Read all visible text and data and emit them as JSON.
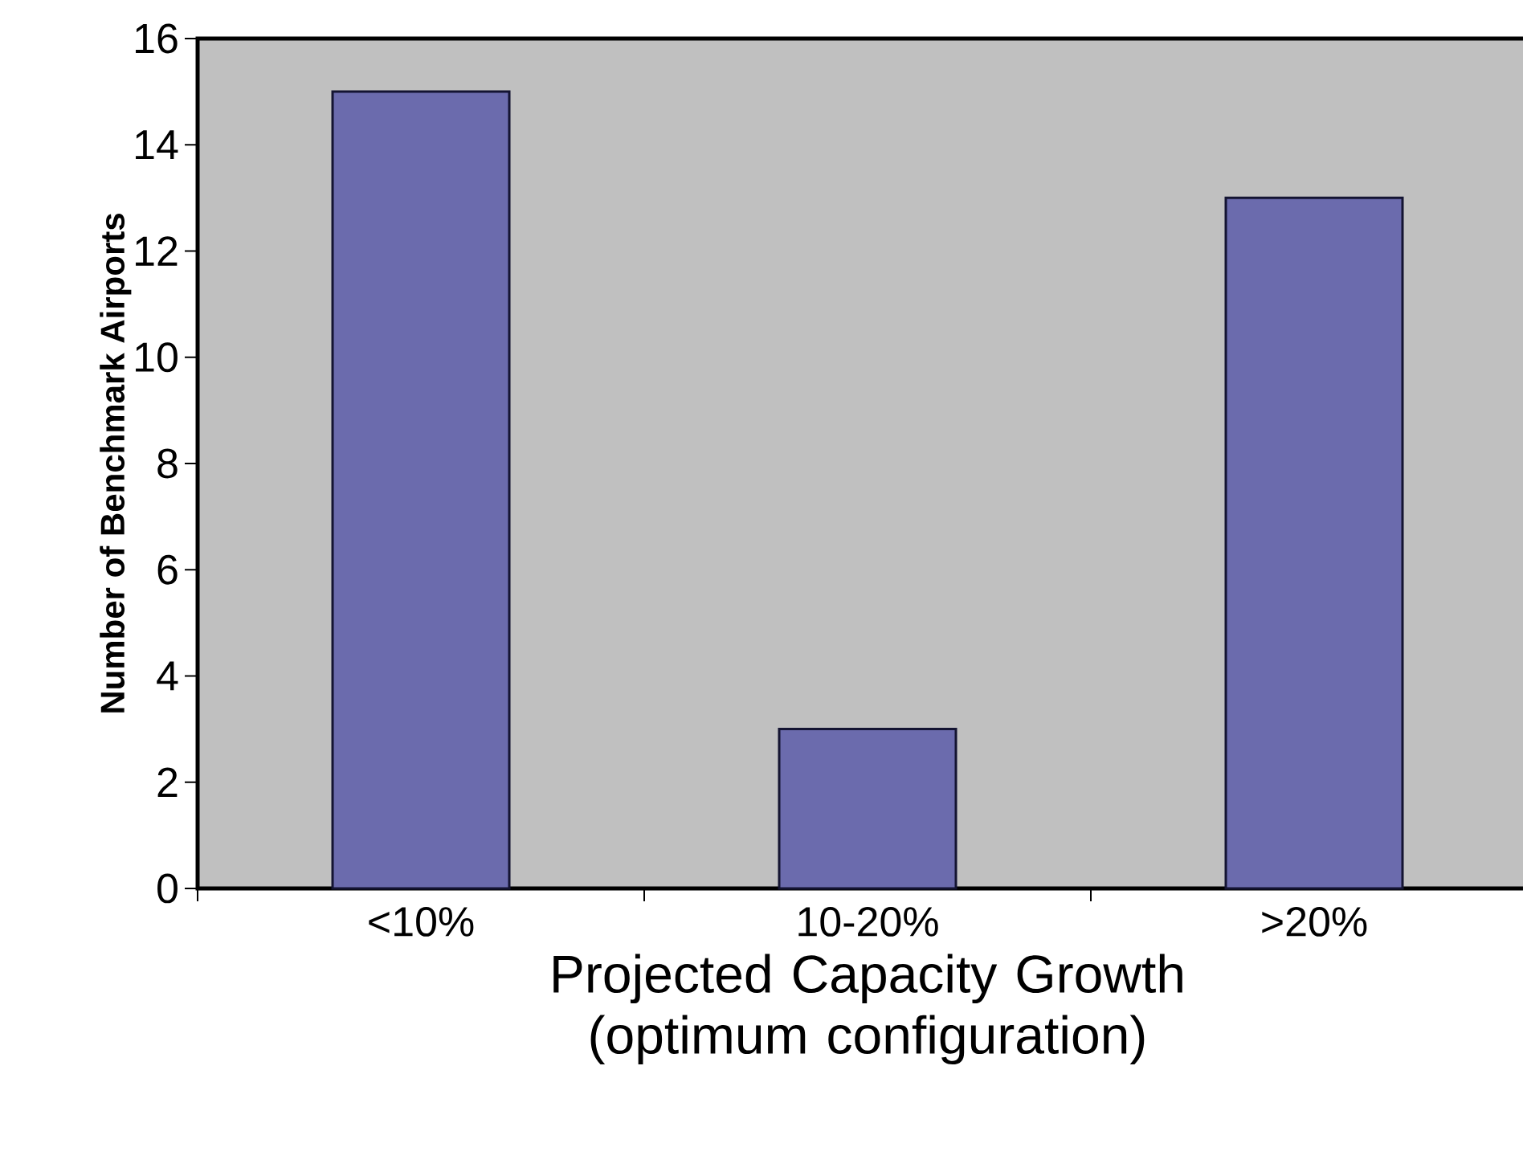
{
  "chart_data": {
    "type": "bar",
    "xlabel": "Projected Capacity Growth (optimum configuration)",
    "ylabel": "Number of Benchmark Airports",
    "categories": [
      "<10%",
      "10-20%",
      ">20%"
    ],
    "values": [
      15,
      3,
      13
    ],
    "color": "#6b6bad",
    "ylim": [
      0,
      16
    ],
    "yticks": [
      0,
      2,
      4,
      6,
      8,
      10,
      12,
      14,
      16
    ]
  }
}
